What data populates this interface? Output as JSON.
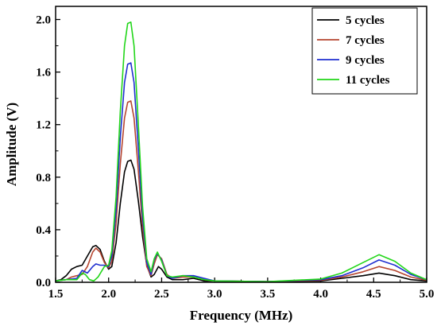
{
  "chart_data": {
    "type": "line",
    "xlabel": "Frequency (MHz)",
    "ylabel": "Amplitude (V)",
    "xlim": [
      1.5,
      5.0
    ],
    "ylim": [
      0.0,
      2.1
    ],
    "xticks": [
      1.5,
      2.0,
      2.5,
      3.0,
      3.5,
      4.0,
      4.5,
      5.0
    ],
    "xtick_labels": [
      "1.5",
      "2.0",
      "2.5",
      "3.0",
      "3.5",
      "4.0",
      "4.5",
      "5.0"
    ],
    "yticks": [
      0.0,
      0.4,
      0.8,
      1.2,
      1.6,
      2.0
    ],
    "ytick_labels": [
      "0.0",
      "0.4",
      "0.8",
      "1.2",
      "1.6",
      "2.0"
    ],
    "grid": false,
    "legend_position": "top-right",
    "series": [
      {
        "name": "5 cycles",
        "color": "#000000",
        "points": [
          [
            1.5,
            0.01
          ],
          [
            1.55,
            0.02
          ],
          [
            1.6,
            0.05
          ],
          [
            1.65,
            0.1
          ],
          [
            1.7,
            0.12
          ],
          [
            1.75,
            0.13
          ],
          [
            1.8,
            0.2
          ],
          [
            1.85,
            0.27
          ],
          [
            1.88,
            0.28
          ],
          [
            1.92,
            0.25
          ],
          [
            1.96,
            0.16
          ],
          [
            2.0,
            0.1
          ],
          [
            2.03,
            0.12
          ],
          [
            2.07,
            0.3
          ],
          [
            2.11,
            0.6
          ],
          [
            2.15,
            0.84
          ],
          [
            2.18,
            0.92
          ],
          [
            2.21,
            0.93
          ],
          [
            2.24,
            0.86
          ],
          [
            2.28,
            0.62
          ],
          [
            2.32,
            0.35
          ],
          [
            2.36,
            0.13
          ],
          [
            2.4,
            0.04
          ],
          [
            2.43,
            0.06
          ],
          [
            2.47,
            0.12
          ],
          [
            2.5,
            0.1
          ],
          [
            2.55,
            0.04
          ],
          [
            2.6,
            0.02
          ],
          [
            2.7,
            0.02
          ],
          [
            2.8,
            0.03
          ],
          [
            2.9,
            0.01
          ],
          [
            3.0,
            0.01
          ],
          [
            3.5,
            0.005
          ],
          [
            4.0,
            0.01
          ],
          [
            4.2,
            0.03
          ],
          [
            4.4,
            0.05
          ],
          [
            4.55,
            0.07
          ],
          [
            4.7,
            0.05
          ],
          [
            4.85,
            0.02
          ],
          [
            5.0,
            0.01
          ]
        ]
      },
      {
        "name": "7 cycles",
        "color": "#b5452f",
        "points": [
          [
            1.5,
            0.01
          ],
          [
            1.6,
            0.02
          ],
          [
            1.65,
            0.04
          ],
          [
            1.7,
            0.05
          ],
          [
            1.75,
            0.06
          ],
          [
            1.8,
            0.12
          ],
          [
            1.85,
            0.23
          ],
          [
            1.88,
            0.26
          ],
          [
            1.92,
            0.23
          ],
          [
            1.96,
            0.15
          ],
          [
            2.0,
            0.11
          ],
          [
            2.03,
            0.16
          ],
          [
            2.07,
            0.45
          ],
          [
            2.11,
            0.9
          ],
          [
            2.15,
            1.25
          ],
          [
            2.18,
            1.37
          ],
          [
            2.21,
            1.38
          ],
          [
            2.24,
            1.25
          ],
          [
            2.28,
            0.85
          ],
          [
            2.32,
            0.42
          ],
          [
            2.36,
            0.12
          ],
          [
            2.4,
            0.05
          ],
          [
            2.43,
            0.14
          ],
          [
            2.46,
            0.21
          ],
          [
            2.5,
            0.18
          ],
          [
            2.55,
            0.06
          ],
          [
            2.6,
            0.03
          ],
          [
            2.7,
            0.04
          ],
          [
            2.8,
            0.04
          ],
          [
            2.9,
            0.02
          ],
          [
            3.0,
            0.01
          ],
          [
            3.5,
            0.005
          ],
          [
            4.0,
            0.015
          ],
          [
            4.2,
            0.04
          ],
          [
            4.4,
            0.08
          ],
          [
            4.55,
            0.12
          ],
          [
            4.7,
            0.09
          ],
          [
            4.85,
            0.04
          ],
          [
            5.0,
            0.015
          ]
        ]
      },
      {
        "name": "9 cycles",
        "color": "#1f2fd0",
        "points": [
          [
            1.5,
            0.01
          ],
          [
            1.6,
            0.02
          ],
          [
            1.7,
            0.03
          ],
          [
            1.75,
            0.09
          ],
          [
            1.8,
            0.07
          ],
          [
            1.85,
            0.12
          ],
          [
            1.88,
            0.14
          ],
          [
            1.92,
            0.13
          ],
          [
            1.96,
            0.13
          ],
          [
            2.0,
            0.12
          ],
          [
            2.03,
            0.2
          ],
          [
            2.07,
            0.55
          ],
          [
            2.11,
            1.1
          ],
          [
            2.15,
            1.52
          ],
          [
            2.18,
            1.66
          ],
          [
            2.21,
            1.67
          ],
          [
            2.24,
            1.52
          ],
          [
            2.28,
            1.02
          ],
          [
            2.32,
            0.5
          ],
          [
            2.36,
            0.15
          ],
          [
            2.4,
            0.06
          ],
          [
            2.43,
            0.17
          ],
          [
            2.46,
            0.22
          ],
          [
            2.5,
            0.17
          ],
          [
            2.55,
            0.05
          ],
          [
            2.6,
            0.03
          ],
          [
            2.7,
            0.05
          ],
          [
            2.8,
            0.05
          ],
          [
            2.9,
            0.03
          ],
          [
            3.0,
            0.01
          ],
          [
            3.5,
            0.005
          ],
          [
            4.0,
            0.02
          ],
          [
            4.2,
            0.05
          ],
          [
            4.4,
            0.11
          ],
          [
            4.55,
            0.17
          ],
          [
            4.7,
            0.13
          ],
          [
            4.85,
            0.06
          ],
          [
            5.0,
            0.02
          ]
        ]
      },
      {
        "name": "11 cycles",
        "color": "#22d61a",
        "points": [
          [
            1.5,
            0.01
          ],
          [
            1.6,
            0.02
          ],
          [
            1.7,
            0.02
          ],
          [
            1.75,
            0.07
          ],
          [
            1.78,
            0.06
          ],
          [
            1.82,
            0.02
          ],
          [
            1.86,
            0.01
          ],
          [
            1.9,
            0.04
          ],
          [
            1.96,
            0.12
          ],
          [
            2.0,
            0.13
          ],
          [
            2.03,
            0.24
          ],
          [
            2.07,
            0.65
          ],
          [
            2.11,
            1.3
          ],
          [
            2.15,
            1.8
          ],
          [
            2.18,
            1.97
          ],
          [
            2.21,
            1.98
          ],
          [
            2.24,
            1.8
          ],
          [
            2.28,
            1.2
          ],
          [
            2.32,
            0.58
          ],
          [
            2.36,
            0.18
          ],
          [
            2.4,
            0.08
          ],
          [
            2.43,
            0.18
          ],
          [
            2.46,
            0.23
          ],
          [
            2.5,
            0.16
          ],
          [
            2.55,
            0.05
          ],
          [
            2.6,
            0.04
          ],
          [
            2.7,
            0.05
          ],
          [
            2.8,
            0.04
          ],
          [
            2.9,
            0.02
          ],
          [
            3.0,
            0.01
          ],
          [
            3.5,
            0.005
          ],
          [
            4.0,
            0.025
          ],
          [
            4.2,
            0.07
          ],
          [
            4.4,
            0.15
          ],
          [
            4.55,
            0.21
          ],
          [
            4.7,
            0.16
          ],
          [
            4.85,
            0.07
          ],
          [
            5.0,
            0.02
          ]
        ]
      }
    ]
  }
}
